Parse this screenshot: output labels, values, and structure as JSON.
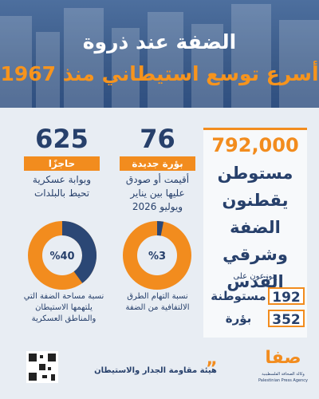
{
  "header": {
    "title_line1": "الضفة عند ذروة",
    "title_line2": "أسرع توسع استيطاني منذ 1967"
  },
  "settlers": {
    "number": "792,000",
    "text": "مستوطن يقطنون الضفة وشرقي القدس",
    "distributed": "يتوزعون على",
    "items": [
      {
        "number": "192",
        "label": "مستوطنة"
      },
      {
        "number": "352",
        "label": "بؤرة"
      }
    ]
  },
  "outposts": {
    "number": "76",
    "tag": "بؤرة جديدة",
    "text": "أقيمت أو صودق عليها بين يناير ويوليو 2026"
  },
  "checkpoints": {
    "number": "625",
    "tag": "حاجزًا",
    "text": "وبوابة عسكرية تحيط بالبلدات"
  },
  "chart_data": [
    {
      "type": "pie",
      "values": [
        40
      ],
      "value_labels": [
        "%40"
      ],
      "color": "#2b4775",
      "title": "نسبة مساحة الضفة التي يلتهمها الاستيطان والمناطق العسكرية"
    },
    {
      "type": "pie",
      "values": [
        3
      ],
      "value_labels": [
        "%3"
      ],
      "color": "#2b4775",
      "title": "نسبة التهام الطرق الالتفافية من الضفة"
    }
  ],
  "footer": {
    "source": "هيئة مقاومة الجدار والاستيطان",
    "logo": "صفا",
    "agency_ar": "وكالة الصحافة الفلسطينية",
    "agency_en": "Palestinian Press Agency"
  }
}
